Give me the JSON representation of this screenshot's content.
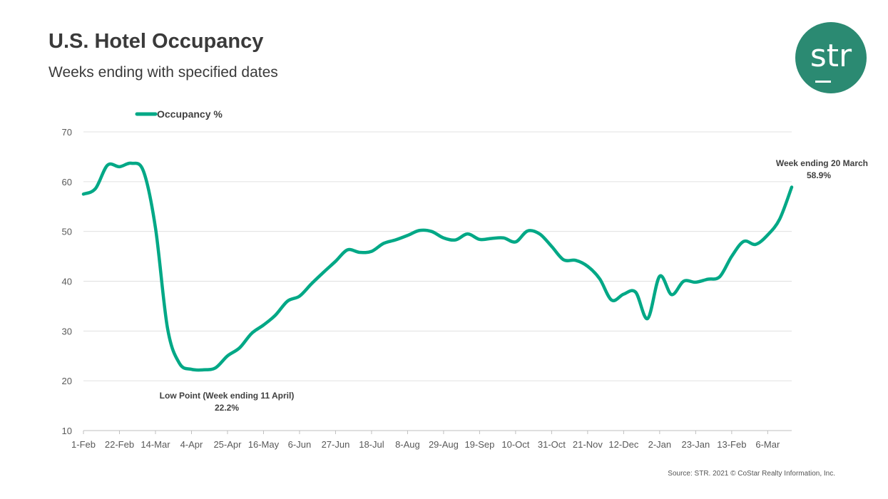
{
  "header": {
    "title": "U.S. Hotel Occupancy",
    "subtitle": "Weeks ending with specified dates"
  },
  "logo": {
    "text": "str",
    "color": "#2b8a72"
  },
  "source": "Source: STR. 2021 © CoStar Realty Information, Inc.",
  "chart_data": {
    "type": "line",
    "title": "U.S. Hotel Occupancy",
    "subtitle": "Weeks ending with specified dates",
    "legend": {
      "position": "top-left"
    },
    "grid": true,
    "ylim": [
      10,
      70
    ],
    "yticks": [
      10,
      20,
      30,
      40,
      50,
      60,
      70
    ],
    "xtick_labels": [
      "1-Feb",
      "22-Feb",
      "14-Mar",
      "4-Apr",
      "25-Apr",
      "16-May",
      "6-Jun",
      "27-Jun",
      "18-Jul",
      "8-Aug",
      "29-Aug",
      "19-Sep",
      "10-Oct",
      "31-Oct",
      "21-Nov",
      "12-Dec",
      "2-Jan",
      "23-Jan",
      "13-Feb",
      "6-Mar"
    ],
    "xtick_every_weeks": 3,
    "series": [
      {
        "name": "Occupancy %",
        "color": "#00a886",
        "values": [
          57.5,
          58.6,
          63.3,
          63.0,
          63.7,
          62.1,
          50.7,
          30.6,
          23.5,
          22.3,
          22.2,
          22.6,
          25.0,
          26.6,
          29.5,
          31.2,
          33.2,
          36.0,
          37.0,
          39.5,
          41.8,
          44.0,
          46.3,
          45.8,
          46.0,
          47.6,
          48.3,
          49.2,
          50.2,
          50.0,
          48.7,
          48.3,
          49.5,
          48.4,
          48.6,
          48.7,
          47.9,
          50.1,
          49.5,
          47.0,
          44.3,
          44.2,
          43.0,
          40.5,
          36.2,
          37.4,
          37.8,
          32.5,
          41.0,
          37.3,
          40.0,
          39.8,
          40.4,
          40.9,
          45.0,
          48.0,
          47.4,
          49.3,
          52.5,
          58.9
        ]
      }
    ],
    "annotations": [
      {
        "text": "Low Point (Week ending 11 April)",
        "value_label": "22.2%",
        "week_index": 10
      },
      {
        "text": "Week ending 20 March",
        "value_label": "58.9%",
        "week_index": 59
      }
    ]
  }
}
